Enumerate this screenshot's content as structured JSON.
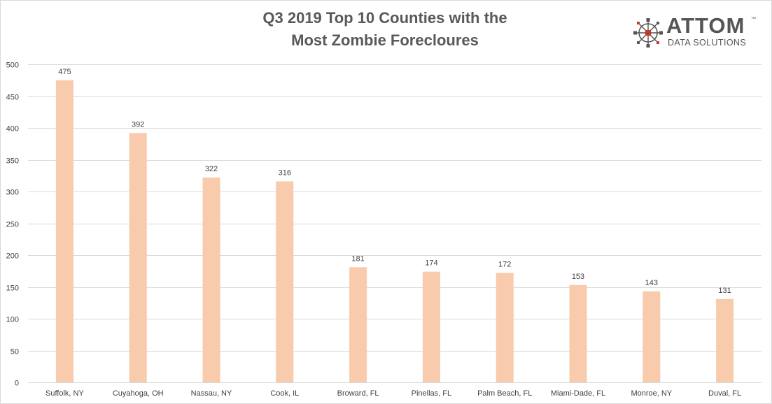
{
  "title_line1": "Q3 2019 Top 10 Counties with the",
  "title_line2": "Most Zombie Forecloures",
  "logo": {
    "word": "ATTOM",
    "tm": "™",
    "sub": "DATA SOLUTIONS",
    "icon": "network-icon"
  },
  "colors": {
    "bar": "#f8cbad",
    "grid": "#d9d9d9",
    "text": "#404040",
    "title": "#595959",
    "logo_red": "#c0392b",
    "logo_gray": "#555555"
  },
  "chart_data": {
    "type": "bar",
    "title": "Q3 2019 Top 10 Counties with the Most Zombie Forecloures",
    "categories": [
      "Suffolk, NY",
      "Cuyahoga, OH",
      "Nassau, NY",
      "Cook, IL",
      "Broward, FL",
      "Pinellas, FL",
      "Palm Beach, FL",
      "Miami-Dade, FL",
      "Monroe, NY",
      "Duval, FL"
    ],
    "values": [
      475,
      392,
      322,
      316,
      181,
      174,
      172,
      153,
      143,
      131
    ],
    "yticks": [
      0,
      50,
      100,
      150,
      200,
      250,
      300,
      350,
      400,
      450,
      500
    ],
    "ylim": [
      0,
      500
    ],
    "xlabel": "",
    "ylabel": "",
    "grid": true,
    "data_labels": true
  }
}
